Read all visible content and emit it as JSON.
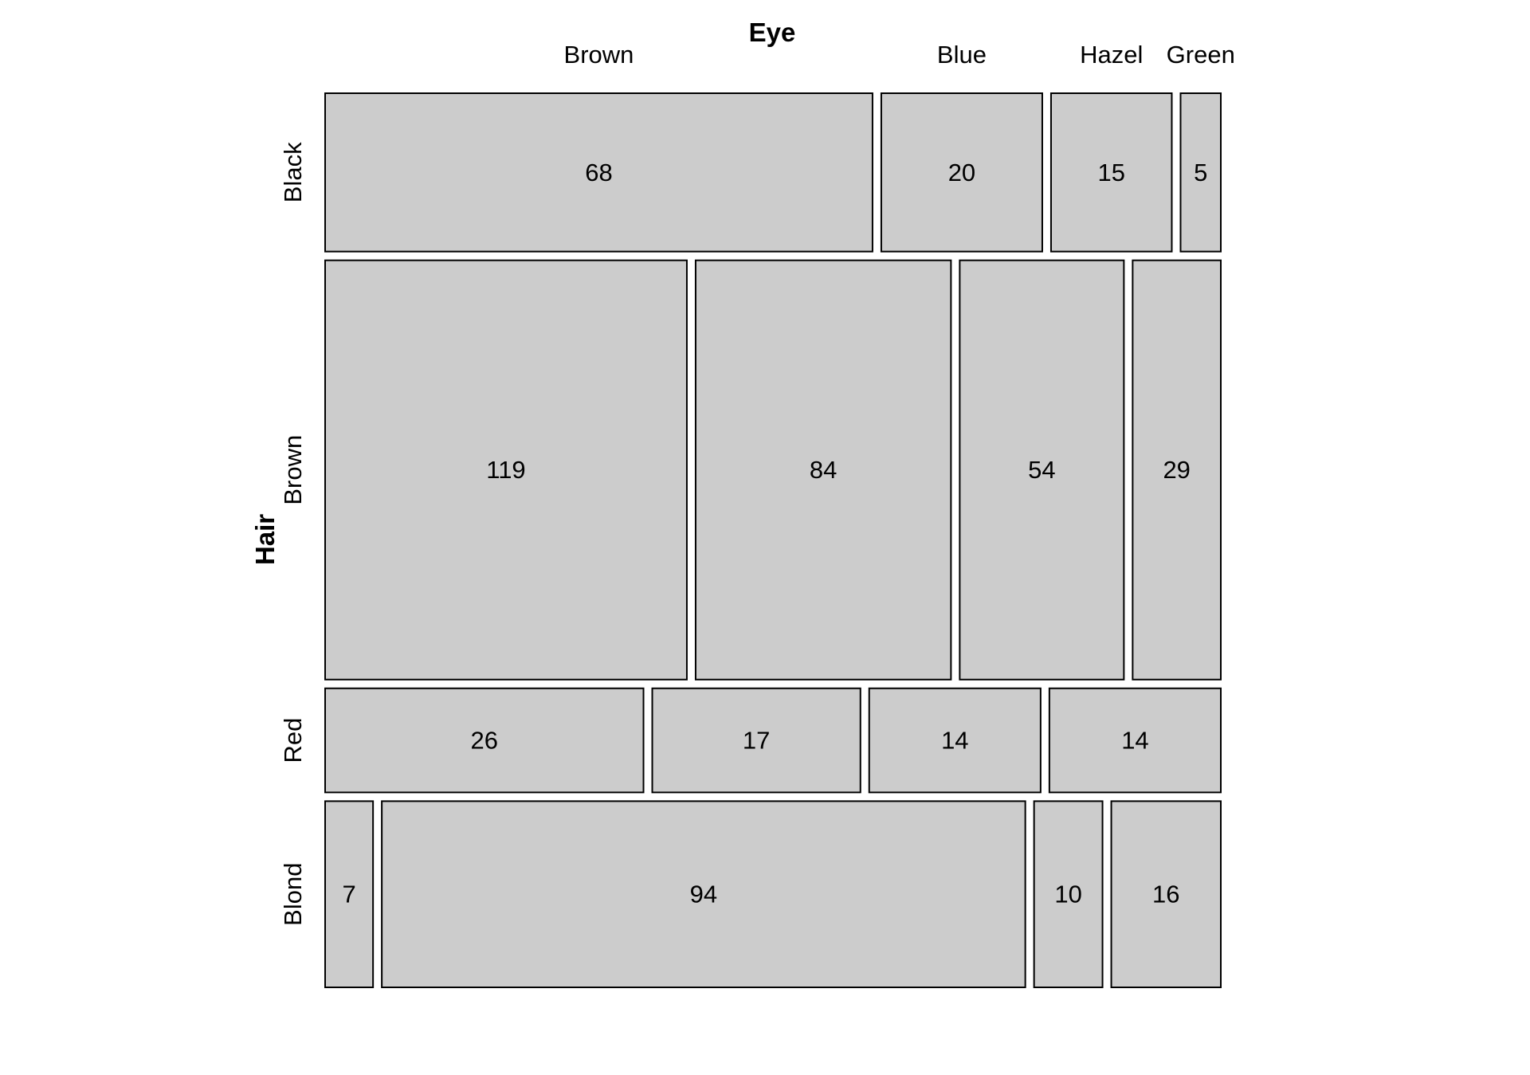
{
  "chart_data": {
    "type": "mosaic",
    "col_variable": "Eye",
    "row_variable": "Hair",
    "col_levels": [
      "Brown",
      "Blue",
      "Hazel",
      "Green"
    ],
    "row_levels": [
      "Black",
      "Brown",
      "Red",
      "Blond"
    ],
    "counts": [
      [
        68,
        20,
        15,
        5
      ],
      [
        119,
        84,
        54,
        29
      ],
      [
        26,
        17,
        14,
        14
      ],
      [
        7,
        94,
        10,
        16
      ]
    ],
    "colors": {
      "tile_fill": "#cccccc",
      "tile_stroke": "#000000",
      "background": "#ffffff"
    }
  }
}
